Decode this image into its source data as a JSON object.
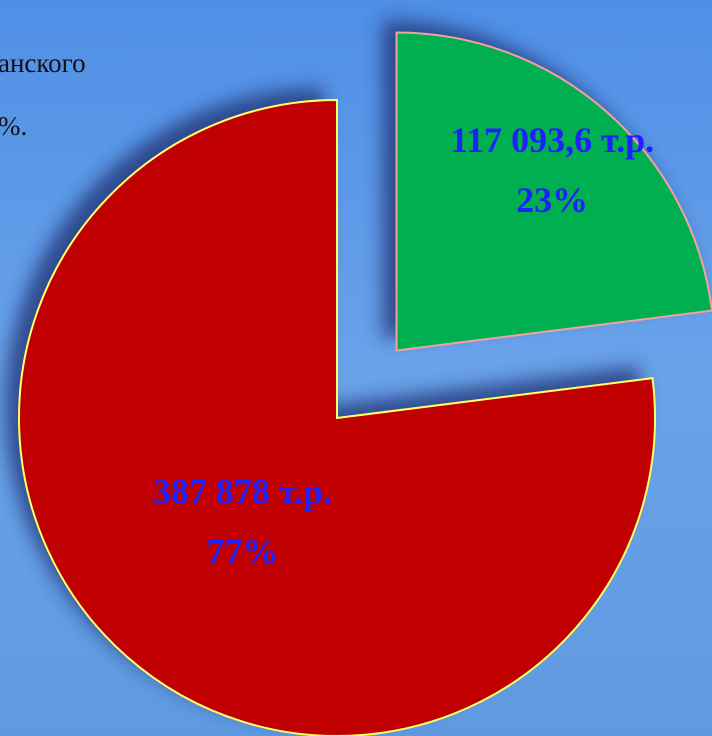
{
  "chart_data": {
    "type": "pie",
    "values": [
      23,
      77
    ],
    "value_labels": [
      "23%",
      "77%"
    ],
    "amount_labels": [
      "117 093,6 т.р.",
      "387  878 т.р."
    ],
    "colors": [
      "#00b050",
      "#c00000"
    ],
    "text_fragments": [
      "анского",
      "%."
    ],
    "exploded": [
      true,
      false
    ]
  }
}
